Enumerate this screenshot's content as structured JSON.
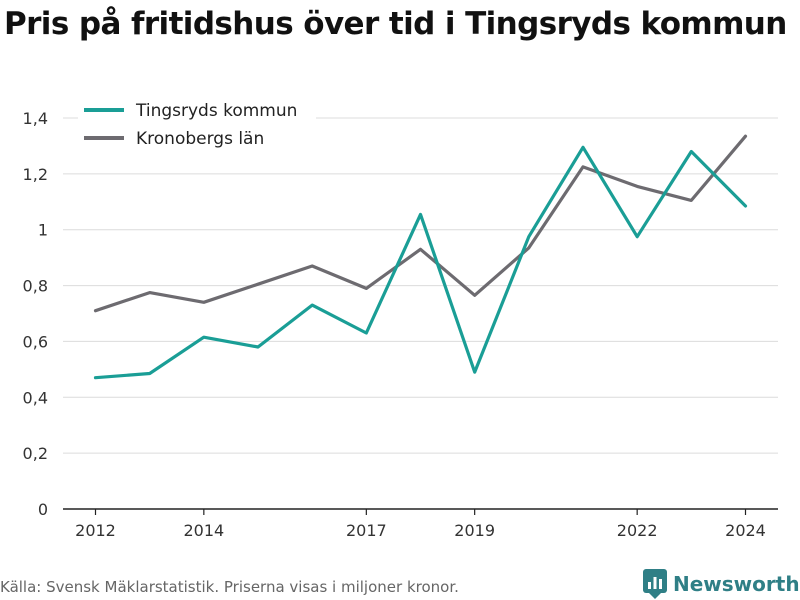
{
  "title": "Pris på fritidshus över tid i Tingsryds kommun",
  "source": "Källa: Svensk Mäklarstatistik. Priserna visas i miljoner kronor.",
  "brand": {
    "name": "Newsworthy",
    "icon": "newsworthy-logo-icon",
    "color": "#2f7f86"
  },
  "chart_data": {
    "type": "line",
    "x": [
      2012,
      2013,
      2014,
      2015,
      2016,
      2017,
      2018,
      2019,
      2020,
      2021,
      2022,
      2023,
      2024
    ],
    "xticks": [
      "2012",
      "2014",
      "2017",
      "2019",
      "2022",
      "2024"
    ],
    "xtick_values": [
      2012,
      2014,
      2017,
      2019,
      2022,
      2024
    ],
    "yticks": [
      "0",
      "0,2",
      "0,4",
      "0,6",
      "0,8",
      "1",
      "1,2",
      "1,4"
    ],
    "ytick_values": [
      0,
      0.2,
      0.4,
      0.6,
      0.8,
      1.0,
      1.2,
      1.4
    ],
    "xlim": [
      2011.4,
      2024.6
    ],
    "ylim": [
      0,
      1.4
    ],
    "grid": true,
    "legend_position": "top-left",
    "series": [
      {
        "name": "Tingsryds kommun",
        "color": "#1a9e96",
        "values": [
          0.47,
          0.485,
          0.615,
          0.58,
          0.73,
          0.63,
          1.055,
          0.49,
          0.975,
          1.295,
          0.975,
          1.28,
          1.085
        ]
      },
      {
        "name": "Kronobergs län",
        "color": "#6d6b70",
        "values": [
          0.71,
          0.775,
          0.74,
          0.805,
          0.87,
          0.79,
          0.93,
          0.765,
          0.935,
          1.225,
          1.155,
          1.105,
          1.335
        ]
      }
    ]
  }
}
